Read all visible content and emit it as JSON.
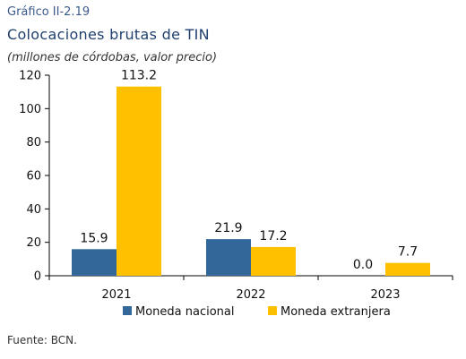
{
  "header": {
    "kicker": "Gráfico II-2.19",
    "title": "Colocaciones brutas de TIN",
    "subtitle": "(millones de córdobas, valor precio)"
  },
  "footer": {
    "source": "Fuente: BCN."
  },
  "colors": {
    "nacional": "#336699",
    "extranjera": "#FFC000"
  },
  "chart_data": {
    "type": "bar",
    "title": "Colocaciones brutas de TIN",
    "subtitle": "(millones de córdobas, valor precio)",
    "categories": [
      "2021",
      "2022",
      "2023"
    ],
    "series": [
      {
        "name": "Moneda nacional",
        "values": [
          15.9,
          21.9,
          0.0
        ],
        "labels": [
          "15.9",
          "21.9",
          "0.0"
        ]
      },
      {
        "name": "Moneda extranjera",
        "values": [
          113.2,
          17.2,
          7.7
        ],
        "labels": [
          "113.2",
          "17.2",
          "7.7"
        ]
      }
    ],
    "ylim": [
      0,
      120
    ],
    "yticks": [
      0,
      20,
      40,
      60,
      80,
      100,
      120
    ],
    "grid": false,
    "legend_position": "bottom"
  }
}
